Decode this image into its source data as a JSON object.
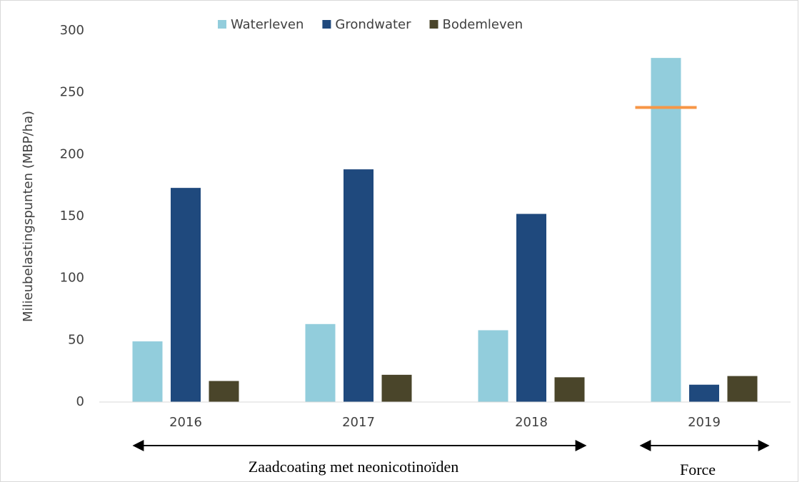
{
  "chart_data": {
    "type": "bar",
    "y_label": "Milieubelastingspunten (MBP/ha)",
    "categories": [
      "2016",
      "2017",
      "2018",
      "2019"
    ],
    "series": [
      {
        "name": "Waterleven",
        "color": "#92cddc",
        "values": [
          49,
          63,
          58,
          278
        ]
      },
      {
        "name": "Grondwater",
        "color": "#1f497d",
        "values": [
          173,
          188,
          152,
          14
        ]
      },
      {
        "name": "Bodemleven",
        "color": "#4a452a",
        "values": [
          17,
          22,
          20,
          21
        ]
      }
    ],
    "reference_line": {
      "value": 238,
      "color": "#f79646"
    },
    "ylim": [
      0,
      300
    ],
    "yticks": [
      0,
      50,
      100,
      150,
      200,
      250,
      300
    ],
    "annotations": [
      "Zaadcoating met neonicotinoïden",
      "Force"
    ]
  }
}
